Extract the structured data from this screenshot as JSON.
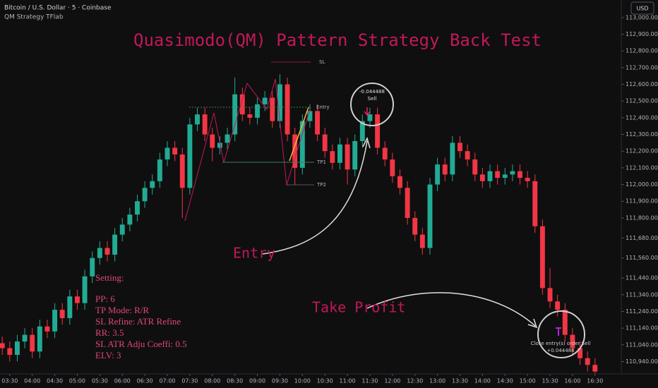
{
  "chart_data": {
    "type": "candlestick",
    "title": "Quasimodo(QM) Pattern Strategy Back Test",
    "symbol": "Bitcoin / U.S. Dollar · 5 · Coinbase",
    "indicator": "QM Strategy TFlab",
    "currency": "USD",
    "up_color": "#22ab94",
    "down_color": "#f23645",
    "annotations": [
      "Entry",
      "Take Profit",
      "-0.044488",
      "Sell",
      "Close entry(s) order Sell",
      "+0.044488",
      "SL",
      "Entry",
      "TP1",
      "TP2"
    ],
    "settings": [
      "Setting:",
      "PP: 6",
      "TP Mode: R/R",
      "SL Refine: ATR Refine",
      "RR: 3.5",
      "SL ATR Adju Coeffi: 0.5",
      "ELV: 3"
    ],
    "xlim": [
      197,
      1025
    ],
    "xticks": [
      {
        "value": 210,
        "label": "03:30"
      },
      {
        "value": 240,
        "label": "04:00"
      },
      {
        "value": 270,
        "label": "04:30"
      },
      {
        "value": 300,
        "label": "05:00"
      },
      {
        "value": 330,
        "label": "05:30"
      },
      {
        "value": 360,
        "label": "06:00"
      },
      {
        "value": 390,
        "label": "06:30"
      },
      {
        "value": 420,
        "label": "07:00"
      },
      {
        "value": 450,
        "label": "07:30"
      },
      {
        "value": 480,
        "label": "08:00"
      },
      {
        "value": 510,
        "label": "08:30"
      },
      {
        "value": 540,
        "label": "09:00"
      },
      {
        "value": 570,
        "label": "09:30"
      },
      {
        "value": 600,
        "label": "10:00"
      },
      {
        "value": 630,
        "label": "10:30"
      },
      {
        "value": 660,
        "label": "11:00"
      },
      {
        "value": 690,
        "label": "11:30"
      },
      {
        "value": 720,
        "label": "12:00"
      },
      {
        "value": 750,
        "label": "12:30"
      },
      {
        "value": 780,
        "label": "13:00"
      },
      {
        "value": 810,
        "label": "13:30"
      },
      {
        "value": 840,
        "label": "14:00"
      },
      {
        "value": 870,
        "label": "14:30"
      },
      {
        "value": 900,
        "label": "15:00"
      },
      {
        "value": 930,
        "label": "15:30"
      },
      {
        "value": 960,
        "label": "16:00"
      },
      {
        "value": 990,
        "label": "16:30"
      }
    ],
    "ylim": [
      110866,
      113105
    ],
    "yticks": [
      {
        "value": 113000,
        "label": "113,000.00"
      },
      {
        "value": 112900,
        "label": "112,900.00"
      },
      {
        "value": 112800,
        "label": "112,800.00"
      },
      {
        "value": 112700,
        "label": "112,700.00"
      },
      {
        "value": 112600,
        "label": "112,600.00"
      },
      {
        "value": 112500,
        "label": "112,500.00"
      },
      {
        "value": 112400,
        "label": "112,400.00"
      },
      {
        "value": 112300,
        "label": "112,300.00"
      },
      {
        "value": 112200,
        "label": "112,200.00"
      },
      {
        "value": 112100,
        "label": "112,100.00"
      },
      {
        "value": 112000,
        "label": "112,000.00"
      },
      {
        "value": 111900,
        "label": "111,900.00"
      },
      {
        "value": 111800,
        "label": "111,800.00"
      },
      {
        "value": 111680,
        "label": "111,680.00"
      },
      {
        "value": 111560,
        "label": "111,560.00"
      },
      {
        "value": 111440,
        "label": "111,440.00"
      },
      {
        "value": 111340,
        "label": "111,340.00"
      },
      {
        "value": 111240,
        "label": "111,240.00"
      },
      {
        "value": 111140,
        "label": "111,140.00"
      },
      {
        "value": 111040,
        "label": "111,040.00"
      },
      {
        "value": 110940,
        "label": "110,940.00"
      }
    ],
    "x": [
      200,
      210,
      220,
      230,
      240,
      250,
      260,
      270,
      280,
      290,
      300,
      310,
      320,
      330,
      340,
      350,
      360,
      370,
      380,
      390,
      400,
      410,
      420,
      430,
      440,
      450,
      460,
      470,
      480,
      490,
      500,
      510,
      520,
      530,
      540,
      550,
      560,
      570,
      580,
      590,
      600,
      610,
      620,
      630,
      640,
      650,
      660,
      670,
      680,
      690,
      700,
      710,
      720,
      730,
      740,
      750,
      760,
      770,
      780,
      790,
      800,
      810,
      820,
      830,
      840,
      850,
      860,
      870,
      880,
      890,
      900,
      910,
      920,
      930,
      940,
      950,
      960,
      970,
      980,
      990
    ],
    "open": [
      111050,
      111020,
      110980,
      111060,
      111100,
      111000,
      111150,
      111120,
      111250,
      111200,
      111330,
      111290,
      111450,
      111560,
      111620,
      111580,
      111700,
      111760,
      111820,
      111900,
      111980,
      112020,
      112150,
      112220,
      112180,
      111980,
      112360,
      112420,
      112300,
      112220,
      112250,
      112300,
      112540,
      112420,
      112400,
      112480,
      112520,
      112380,
      112600,
      112300,
      112100,
      112380,
      112440,
      112300,
      112200,
      112130,
      112240,
      112090,
      112260,
      112380,
      112420,
      112220,
      112150,
      112050,
      111980,
      111800,
      111700,
      111620,
      112000,
      112120,
      112060,
      112250,
      112200,
      112150,
      112060,
      112020,
      112080,
      112040,
      112060,
      112080,
      112040,
      112020,
      111750,
      111380,
      111300,
      111250,
      111100,
      111020,
      110960,
      110920
    ],
    "high": [
      111090,
      111060,
      111100,
      111140,
      111140,
      111190,
      111190,
      111290,
      111290,
      111370,
      111370,
      111490,
      111600,
      111660,
      111660,
      111740,
      111800,
      111860,
      111940,
      112020,
      112060,
      112190,
      112260,
      112260,
      112220,
      112400,
      112460,
      112460,
      112340,
      112290,
      112340,
      112640,
      112580,
      112460,
      112520,
      112560,
      112560,
      112660,
      112640,
      112340,
      112420,
      112480,
      112480,
      112340,
      112240,
      112280,
      112280,
      112300,
      112420,
      112460,
      112460,
      112260,
      112190,
      112090,
      112020,
      111840,
      111740,
      112040,
      112160,
      112160,
      112290,
      112290,
      112240,
      112190,
      112100,
      112120,
      112120,
      112100,
      112120,
      112120,
      112080,
      112060,
      111790,
      111500,
      111340,
      111290,
      111140,
      111060,
      111000,
      110960
    ],
    "low": [
      110980,
      110940,
      110940,
      111020,
      110960,
      110960,
      111080,
      111080,
      111160,
      111160,
      111250,
      111250,
      111410,
      111520,
      111540,
      111540,
      111660,
      111720,
      111780,
      111860,
      111940,
      111980,
      112110,
      112140,
      111800,
      111940,
      112320,
      112260,
      112140,
      112180,
      112210,
      112260,
      112380,
      112360,
      112360,
      112440,
      112340,
      112340,
      112260,
      112000,
      112060,
      112340,
      112260,
      112160,
      112090,
      112090,
      112000,
      112050,
      112220,
      112340,
      112180,
      112110,
      112010,
      111940,
      111760,
      111660,
      111580,
      111580,
      111960,
      112020,
      112020,
      112160,
      112110,
      112020,
      111980,
      111980,
      112000,
      112000,
      112020,
      112000,
      111980,
      111710,
      111340,
      111260,
      111210,
      111060,
      110980,
      110920,
      110880,
      110870
    ],
    "close": [
      111020,
      110980,
      111060,
      111100,
      111000,
      111150,
      111120,
      111250,
      111200,
      111330,
      111290,
      111450,
      111560,
      111620,
      111580,
      111700,
      111760,
      111820,
      111900,
      111980,
      112020,
      112150,
      112220,
      112180,
      111980,
      112360,
      112420,
      112300,
      112220,
      112250,
      112300,
      112540,
      112420,
      112400,
      112480,
      112520,
      112380,
      112600,
      112300,
      112100,
      112380,
      112440,
      112300,
      112200,
      112130,
      112240,
      112090,
      112260,
      112380,
      112420,
      112220,
      112150,
      112050,
      111980,
      111800,
      111700,
      111620,
      112000,
      112120,
      112060,
      112250,
      112200,
      112150,
      112060,
      112020,
      112080,
      112040,
      112060,
      112080,
      112040,
      112020,
      111750,
      111380,
      111300,
      111250,
      111100,
      111020,
      110960,
      110920,
      110880
    ]
  }
}
